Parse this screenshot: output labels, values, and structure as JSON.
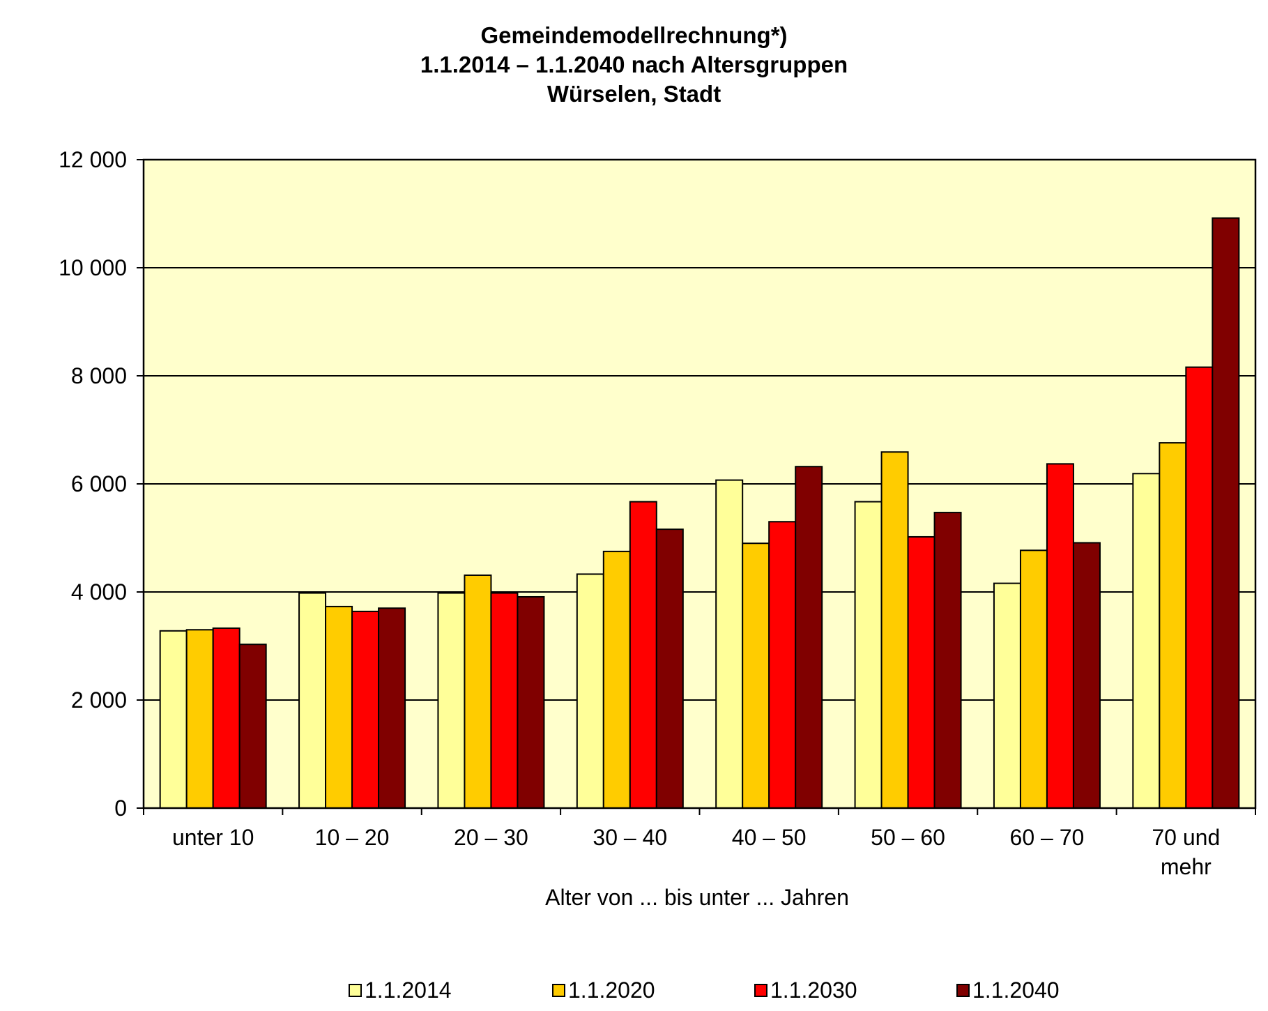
{
  "chart_data": {
    "type": "bar",
    "title_lines": [
      "Gemeindemodellrechnung*)",
      "1.1.2014 – 1.1.2040 nach Altersgruppen",
      "Würselen, Stadt"
    ],
    "xlabel": "Alter von ... bis unter ... Jahren",
    "ylabel": "",
    "ylim": [
      0,
      12000
    ],
    "yticks": [
      0,
      2000,
      4000,
      6000,
      8000,
      10000,
      12000
    ],
    "ytick_labels": [
      "0",
      "2 000",
      "4 000",
      "6 000",
      "8 000",
      "10 000",
      "12 000"
    ],
    "grid": true,
    "legend_position": "bottom",
    "categories": [
      "unter 10",
      "10 – 20",
      "20 – 30",
      "30 – 40",
      "40 – 50",
      "50 – 60",
      "60 – 70",
      "70 und mehr"
    ],
    "category_label_lines": [
      [
        "unter 10"
      ],
      [
        "10 – 20"
      ],
      [
        "20 – 30"
      ],
      [
        "30 – 40"
      ],
      [
        "40 – 50"
      ],
      [
        "50 – 60"
      ],
      [
        "60 – 70"
      ],
      [
        "70 und",
        "mehr"
      ]
    ],
    "series": [
      {
        "name": "1.1.2014",
        "color": "#ffff99",
        "values": [
          3280,
          3980,
          3980,
          4330,
          6070,
          5670,
          4160,
          6190
        ]
      },
      {
        "name": "1.1.2020",
        "color": "#ffcc00",
        "values": [
          3300,
          3730,
          4310,
          4750,
          4900,
          6590,
          4770,
          6760
        ]
      },
      {
        "name": "1.1.2030",
        "color": "#ff0000",
        "values": [
          3330,
          3640,
          3980,
          5670,
          5300,
          5020,
          6370,
          8160
        ]
      },
      {
        "name": "1.1.2040",
        "color": "#800000",
        "values": [
          3030,
          3700,
          3910,
          5160,
          6320,
          5470,
          4910,
          10920
        ]
      }
    ],
    "plot_background": "#ffffcc"
  }
}
